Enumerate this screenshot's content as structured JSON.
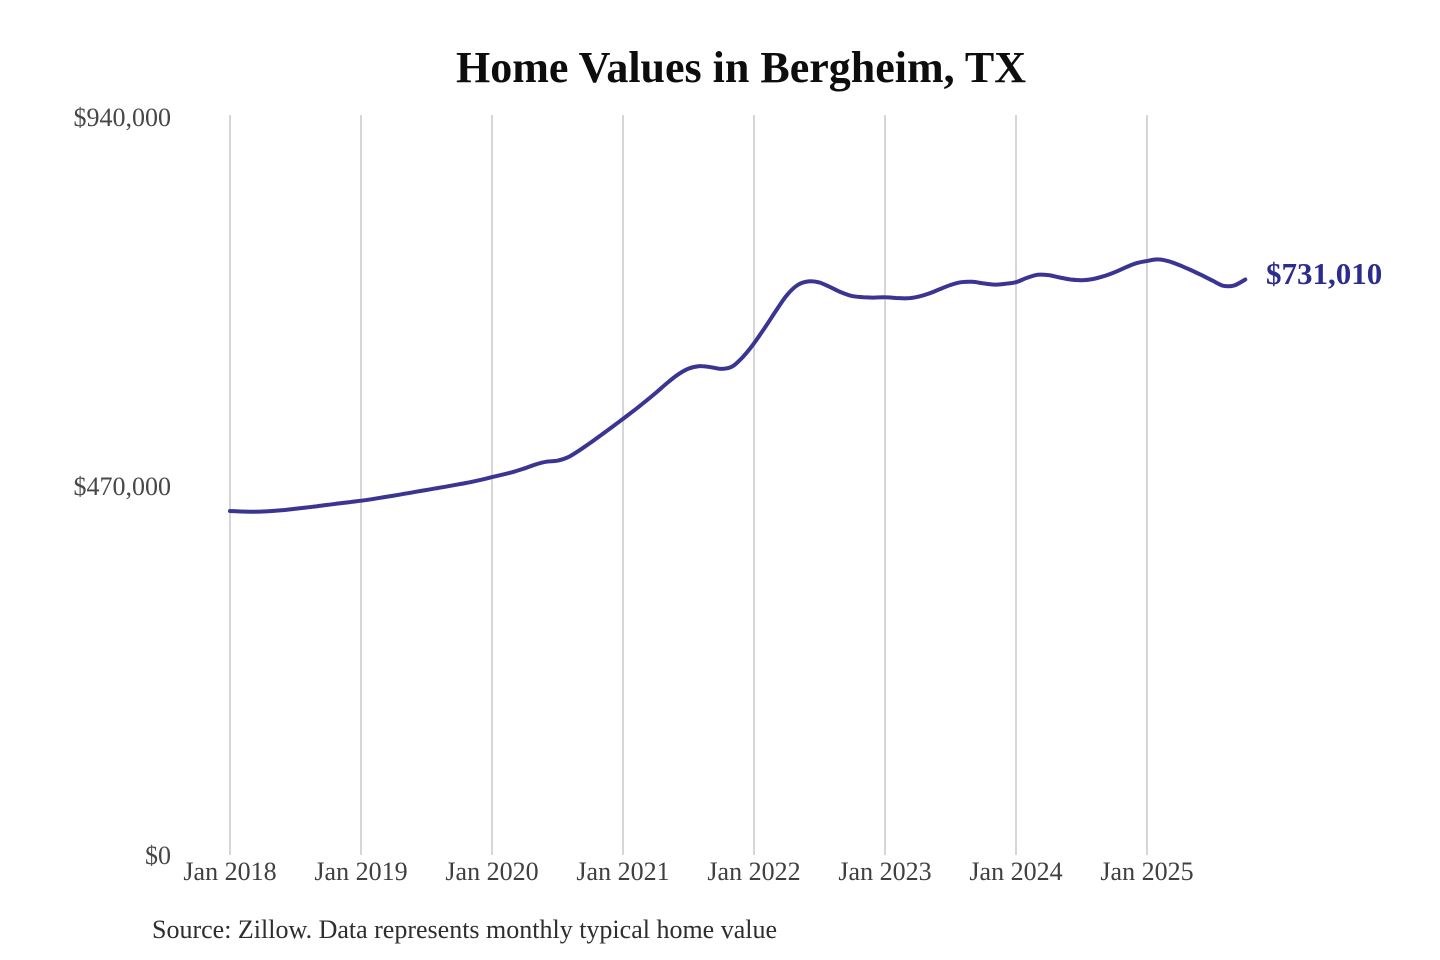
{
  "page": {
    "background_color": "#ffffff"
  },
  "chart_data": {
    "type": "line",
    "title": "Home Values in Bergheim, TX",
    "source_note": "Source: Zillow. Data represents monthly typical home value",
    "end_label": "$731,010",
    "end_value": 731010,
    "line_color": "#3a3492",
    "end_label_color": "#2c2c8e",
    "gridline_color": "#c9c9c9",
    "grid": "vertical-yearly-only",
    "legend": "none",
    "ylim": [
      0,
      940000
    ],
    "y_ticks": [
      {
        "value": 0,
        "label": "$0"
      },
      {
        "value": 470000,
        "label": "$470,000"
      },
      {
        "value": 940000,
        "label": "$940,000"
      }
    ],
    "x_ticks": [
      "Jan 2018",
      "Jan 2019",
      "Jan 2020",
      "Jan 2021",
      "Jan 2022",
      "Jan 2023",
      "Jan 2024",
      "Jan 2025"
    ],
    "series": [
      {
        "name": "Monthly typical home value",
        "x_start": "2018-01",
        "x_end": "2025-10",
        "x_step_months": 1,
        "values": [
          437000,
          436400,
          436100,
          436300,
          437100,
          438300,
          439800,
          441400,
          443100,
          444900,
          446600,
          448300,
          450000,
          452000,
          454200,
          456500,
          458900,
          461300,
          463700,
          466100,
          468500,
          471000,
          473600,
          476600,
          480000,
          483200,
          486800,
          491200,
          496200,
          499600,
          500900,
          505500,
          514000,
          523500,
          533500,
          543700,
          554000,
          564500,
          575500,
          587000,
          599000,
          610000,
          617800,
          621000,
          619800,
          617500,
          620500,
          633000,
          650000,
          670000,
          691000,
          711000,
          724000,
          728600,
          727200,
          721200,
          714600,
          710000,
          708600,
          708000,
          708600,
          707600,
          707100,
          709100,
          713100,
          718600,
          724100,
          727600,
          728100,
          726100,
          724600,
          725600,
          727600,
          733100,
          737100,
          736600,
          733600,
          731100,
          730100,
          731600,
          735100,
          740100,
          746100,
          751600,
          754600,
          756600,
          754100,
          749100,
          743100,
          736600,
          729600,
          723100,
          723600,
          731010
        ]
      }
    ]
  }
}
